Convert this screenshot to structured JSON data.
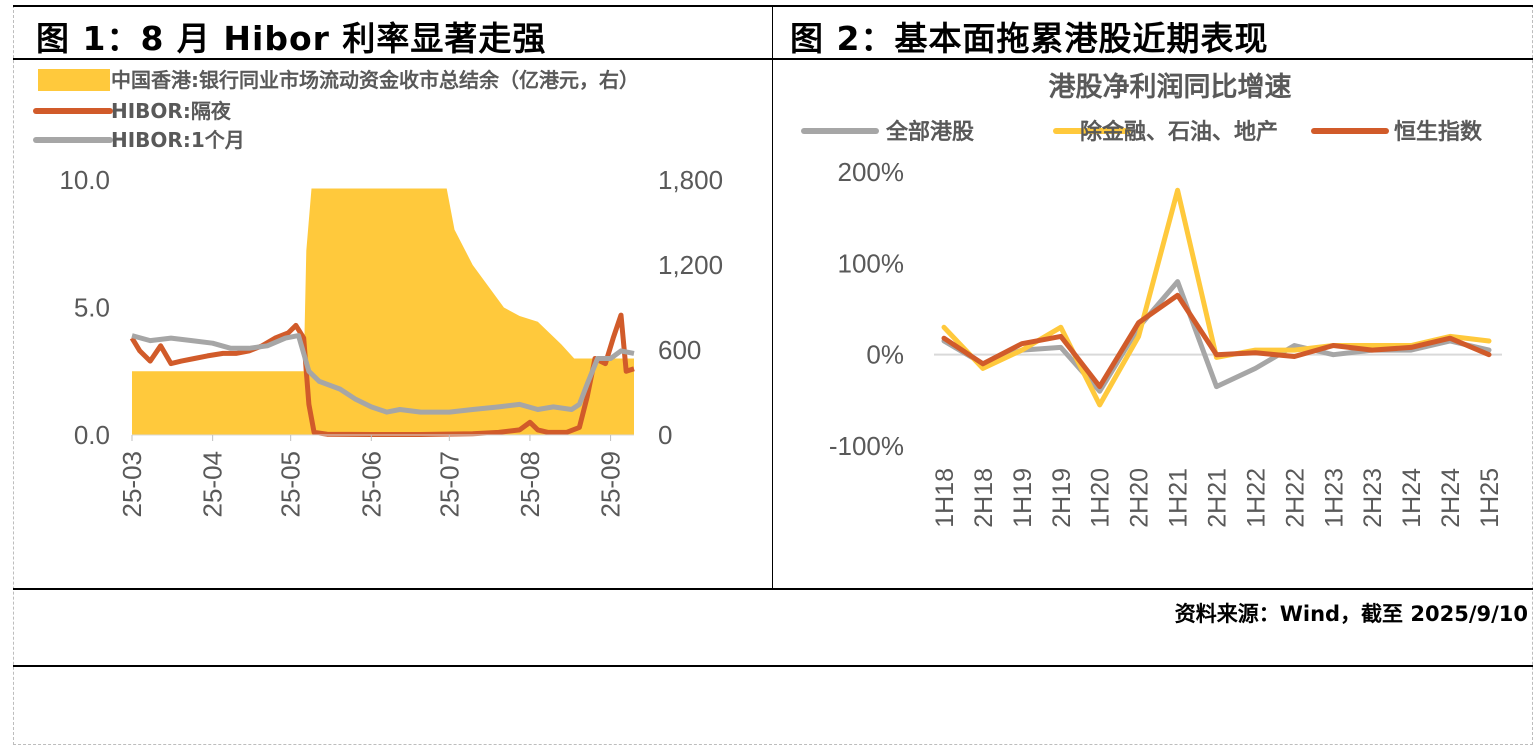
{
  "figure1": {
    "title": "图 1：8 月 Hibor 利率显著走强",
    "chart_data": {
      "type": "line",
      "legend_position": "top-left",
      "grid": false,
      "x_tick_labels": [
        "25-03",
        "25-04",
        "25-05",
        "25-06",
        "25-07",
        "25-08",
        "25-09"
      ],
      "xlim": [
        "2025-03-01",
        "2025-09-10"
      ],
      "left_axis": {
        "ylim": [
          0,
          10
        ],
        "ticks": [
          "0.0",
          "5.0",
          "10.0"
        ],
        "tick_values": [
          0,
          5,
          10
        ]
      },
      "right_axis": {
        "ylim": [
          0,
          1800
        ],
        "ticks": [
          "0",
          "600",
          "1,200",
          "1,800"
        ],
        "tick_values": [
          0,
          600,
          1200,
          1800
        ]
      },
      "series": [
        {
          "name": "中国香港:银行同业市场流动资金收市总结余（亿港元，右）",
          "kind": "area",
          "axis": "right",
          "color": "#FFC93C",
          "x": [
            "2025-03-01",
            "2025-05-06",
            "2025-05-07",
            "2025-05-09",
            "2025-06-01",
            "2025-06-20",
            "2025-06-30",
            "2025-07-03",
            "2025-07-10",
            "2025-07-16",
            "2025-07-22",
            "2025-07-28",
            "2025-08-04",
            "2025-08-13",
            "2025-08-18",
            "2025-08-27",
            "2025-09-10"
          ],
          "values": [
            450,
            450,
            1300,
            1740,
            1740,
            1740,
            1740,
            1450,
            1200,
            1050,
            900,
            840,
            800,
            640,
            540,
            540,
            540
          ]
        },
        {
          "name": "HIBOR:隔夜",
          "kind": "line",
          "axis": "left",
          "color": "#D15B2A",
          "x": [
            "2025-03-01",
            "2025-03-04",
            "2025-03-08",
            "2025-03-12",
            "2025-03-16",
            "2025-03-20",
            "2025-03-25",
            "2025-03-30",
            "2025-04-05",
            "2025-04-10",
            "2025-04-15",
            "2025-04-20",
            "2025-04-25",
            "2025-04-30",
            "2025-05-03",
            "2025-05-06",
            "2025-05-08",
            "2025-05-10",
            "2025-05-15",
            "2025-06-01",
            "2025-06-20",
            "2025-07-10",
            "2025-07-20",
            "2025-07-28",
            "2025-08-01",
            "2025-08-04",
            "2025-08-08",
            "2025-08-15",
            "2025-08-20",
            "2025-08-23",
            "2025-08-26",
            "2025-08-30",
            "2025-09-02",
            "2025-09-05",
            "2025-09-07",
            "2025-09-10"
          ],
          "values": [
            3.8,
            3.3,
            2.9,
            3.5,
            2.8,
            2.9,
            3.0,
            3.1,
            3.2,
            3.2,
            3.3,
            3.5,
            3.8,
            4.0,
            4.3,
            3.8,
            1.2,
            0.1,
            0.03,
            0.02,
            0.02,
            0.05,
            0.1,
            0.2,
            0.5,
            0.2,
            0.1,
            0.1,
            0.3,
            1.5,
            3.0,
            2.8,
            3.8,
            4.7,
            2.5,
            2.6
          ]
        },
        {
          "name": "HIBOR:1个月",
          "kind": "line",
          "axis": "left",
          "color": "#A6A6A6",
          "x": [
            "2025-03-01",
            "2025-03-08",
            "2025-03-16",
            "2025-03-24",
            "2025-04-01",
            "2025-04-08",
            "2025-04-15",
            "2025-04-22",
            "2025-04-29",
            "2025-05-04",
            "2025-05-08",
            "2025-05-12",
            "2025-05-20",
            "2025-05-26",
            "2025-06-01",
            "2025-06-07",
            "2025-06-12",
            "2025-06-20",
            "2025-07-01",
            "2025-07-10",
            "2025-07-20",
            "2025-07-28",
            "2025-08-04",
            "2025-08-10",
            "2025-08-17",
            "2025-08-20",
            "2025-08-23",
            "2025-08-27",
            "2025-09-01",
            "2025-09-05",
            "2025-09-10"
          ],
          "values": [
            3.9,
            3.7,
            3.8,
            3.7,
            3.6,
            3.4,
            3.4,
            3.5,
            3.8,
            3.9,
            2.5,
            2.1,
            1.8,
            1.4,
            1.1,
            0.9,
            1.0,
            0.9,
            0.9,
            1.0,
            1.1,
            1.2,
            1.0,
            1.1,
            1.0,
            1.2,
            2.0,
            3.0,
            3.0,
            3.3,
            3.2
          ]
        }
      ]
    }
  },
  "figure2": {
    "title": "图 2：基本面拖累港股近期表现",
    "chart_data": {
      "type": "line",
      "title": "港股净利润同比增速",
      "legend_position": "top",
      "grid": false,
      "categories": [
        "1H18",
        "2H18",
        "1H19",
        "2H19",
        "1H20",
        "2H20",
        "1H21",
        "2H21",
        "1H22",
        "2H22",
        "1H23",
        "2H23",
        "1H24",
        "2H24",
        "1H25"
      ],
      "ylim": [
        -100,
        200
      ],
      "y_ticks": [
        "-100%",
        "0%",
        "100%",
        "200%"
      ],
      "y_tick_values": [
        -100,
        0,
        100,
        200
      ],
      "series": [
        {
          "name": "全部港股",
          "color": "#A6A6A6",
          "values": [
            15,
            -10,
            5,
            8,
            -40,
            30,
            80,
            -35,
            -15,
            10,
            0,
            5,
            5,
            15,
            5
          ]
        },
        {
          "name": "除金融、石油、地产",
          "color": "#FFC93C",
          "values": [
            30,
            -15,
            5,
            30,
            -55,
            20,
            180,
            -3,
            5,
            5,
            10,
            10,
            10,
            20,
            15
          ]
        },
        {
          "name": "恒生指数",
          "color": "#D15B2A",
          "values": [
            18,
            -10,
            12,
            20,
            -35,
            35,
            65,
            0,
            2,
            -2,
            10,
            5,
            8,
            18,
            0
          ]
        }
      ]
    }
  },
  "source": "资料来源：Wind，截至 2025/9/10"
}
